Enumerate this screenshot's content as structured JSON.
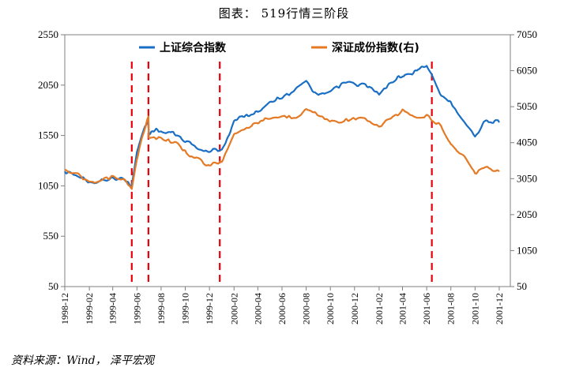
{
  "figure": {
    "title": "图表： 519行情三阶段",
    "source": "资料来源：Wind， 泽平宏观"
  },
  "chart_data": {
    "type": "line",
    "left_axis": {
      "min": 50,
      "max": 2550,
      "ticks": [
        50,
        550,
        1050,
        1550,
        2050,
        2550
      ]
    },
    "right_axis": {
      "min": 50,
      "max": 7050,
      "ticks": [
        50,
        1050,
        2050,
        3050,
        4050,
        5050,
        6050,
        7050
      ]
    },
    "x_range": [
      "1998-12",
      "2001-12"
    ],
    "x_ticks": [
      "1998-12",
      "1999-02",
      "1999-04",
      "1999-06",
      "1999-08",
      "1999-10",
      "1999-12",
      "2000-02",
      "2000-04",
      "2000-06",
      "2000-08",
      "2000-10",
      "2000-12",
      "2001-02",
      "2001-04",
      "2001-06",
      "2001-08",
      "2001-10",
      "2001-12"
    ],
    "colors": {
      "shanghai": "#1a6fc4",
      "shenzhen": "#e47a25",
      "marker": "#e8000b"
    },
    "series": [
      {
        "name": "上证综合指数",
        "axis": "left",
        "points": [
          [
            "1998-12",
            1200
          ],
          [
            "1999-01",
            1140
          ],
          [
            "1999-02",
            1090
          ],
          [
            "1999-03",
            1110
          ],
          [
            "1999-04",
            1140
          ],
          [
            "1999-05",
            1100
          ],
          [
            "1999-05-19",
            1060
          ],
          [
            "1999-06",
            1400
          ],
          [
            "1999-06-30",
            1730
          ],
          [
            "1999-07",
            1580
          ],
          [
            "1999-08",
            1600
          ],
          [
            "1999-09",
            1560
          ],
          [
            "1999-10",
            1500
          ],
          [
            "1999-11",
            1420
          ],
          [
            "1999-12",
            1380
          ],
          [
            "2000-01",
            1420
          ],
          [
            "2000-02",
            1680
          ],
          [
            "2000-03",
            1750
          ],
          [
            "2000-04",
            1800
          ],
          [
            "2000-05",
            1870
          ],
          [
            "2000-06",
            1940
          ],
          [
            "2000-07",
            2000
          ],
          [
            "2000-08",
            2080
          ],
          [
            "2000-09",
            1960
          ],
          [
            "2000-10",
            1980
          ],
          [
            "2000-11",
            2060
          ],
          [
            "2000-12",
            2070
          ],
          [
            "2001-01",
            2040
          ],
          [
            "2001-02",
            1960
          ],
          [
            "2001-03",
            2070
          ],
          [
            "2001-04",
            2150
          ],
          [
            "2001-05",
            2190
          ],
          [
            "2001-06",
            2240
          ],
          [
            "2001-07",
            2000
          ],
          [
            "2001-08",
            1870
          ],
          [
            "2001-09",
            1710
          ],
          [
            "2001-10",
            1540
          ],
          [
            "2001-11",
            1700
          ],
          [
            "2001-12",
            1680
          ]
        ]
      },
      {
        "name": "深证成份指数(右)",
        "axis": "right",
        "points": [
          [
            "1998-12",
            3350
          ],
          [
            "1999-01",
            3130
          ],
          [
            "1999-02",
            2960
          ],
          [
            "1999-03",
            3020
          ],
          [
            "1999-04",
            3080
          ],
          [
            "1999-05",
            2980
          ],
          [
            "1999-05-19",
            2750
          ],
          [
            "1999-06",
            3650
          ],
          [
            "1999-06-30",
            4750
          ],
          [
            "1999-07",
            4160
          ],
          [
            "1999-08",
            4200
          ],
          [
            "1999-09",
            4060
          ],
          [
            "1999-10",
            3850
          ],
          [
            "1999-11",
            3580
          ],
          [
            "1999-12",
            3400
          ],
          [
            "2000-01",
            3560
          ],
          [
            "2000-02",
            4300
          ],
          [
            "2000-03",
            4450
          ],
          [
            "2000-04",
            4600
          ],
          [
            "2000-05",
            4700
          ],
          [
            "2000-06",
            4750
          ],
          [
            "2000-07",
            4800
          ],
          [
            "2000-08",
            4950
          ],
          [
            "2000-09",
            4800
          ],
          [
            "2000-10",
            4650
          ],
          [
            "2000-11",
            4680
          ],
          [
            "2000-12",
            4730
          ],
          [
            "2001-01",
            4650
          ],
          [
            "2001-02",
            4480
          ],
          [
            "2001-03",
            4700
          ],
          [
            "2001-04",
            4980
          ],
          [
            "2001-05",
            4750
          ],
          [
            "2001-06",
            4780
          ],
          [
            "2001-07",
            4600
          ],
          [
            "2001-08",
            4000
          ],
          [
            "2001-09",
            3650
          ],
          [
            "2001-10",
            3230
          ],
          [
            "2001-11",
            3400
          ],
          [
            "2001-12",
            3250
          ]
        ]
      }
    ],
    "markers": [
      "1999-05-19",
      "1999-06-30",
      "1999-12-27",
      "2001-06-14"
    ],
    "legend": {
      "placement": "top"
    }
  }
}
